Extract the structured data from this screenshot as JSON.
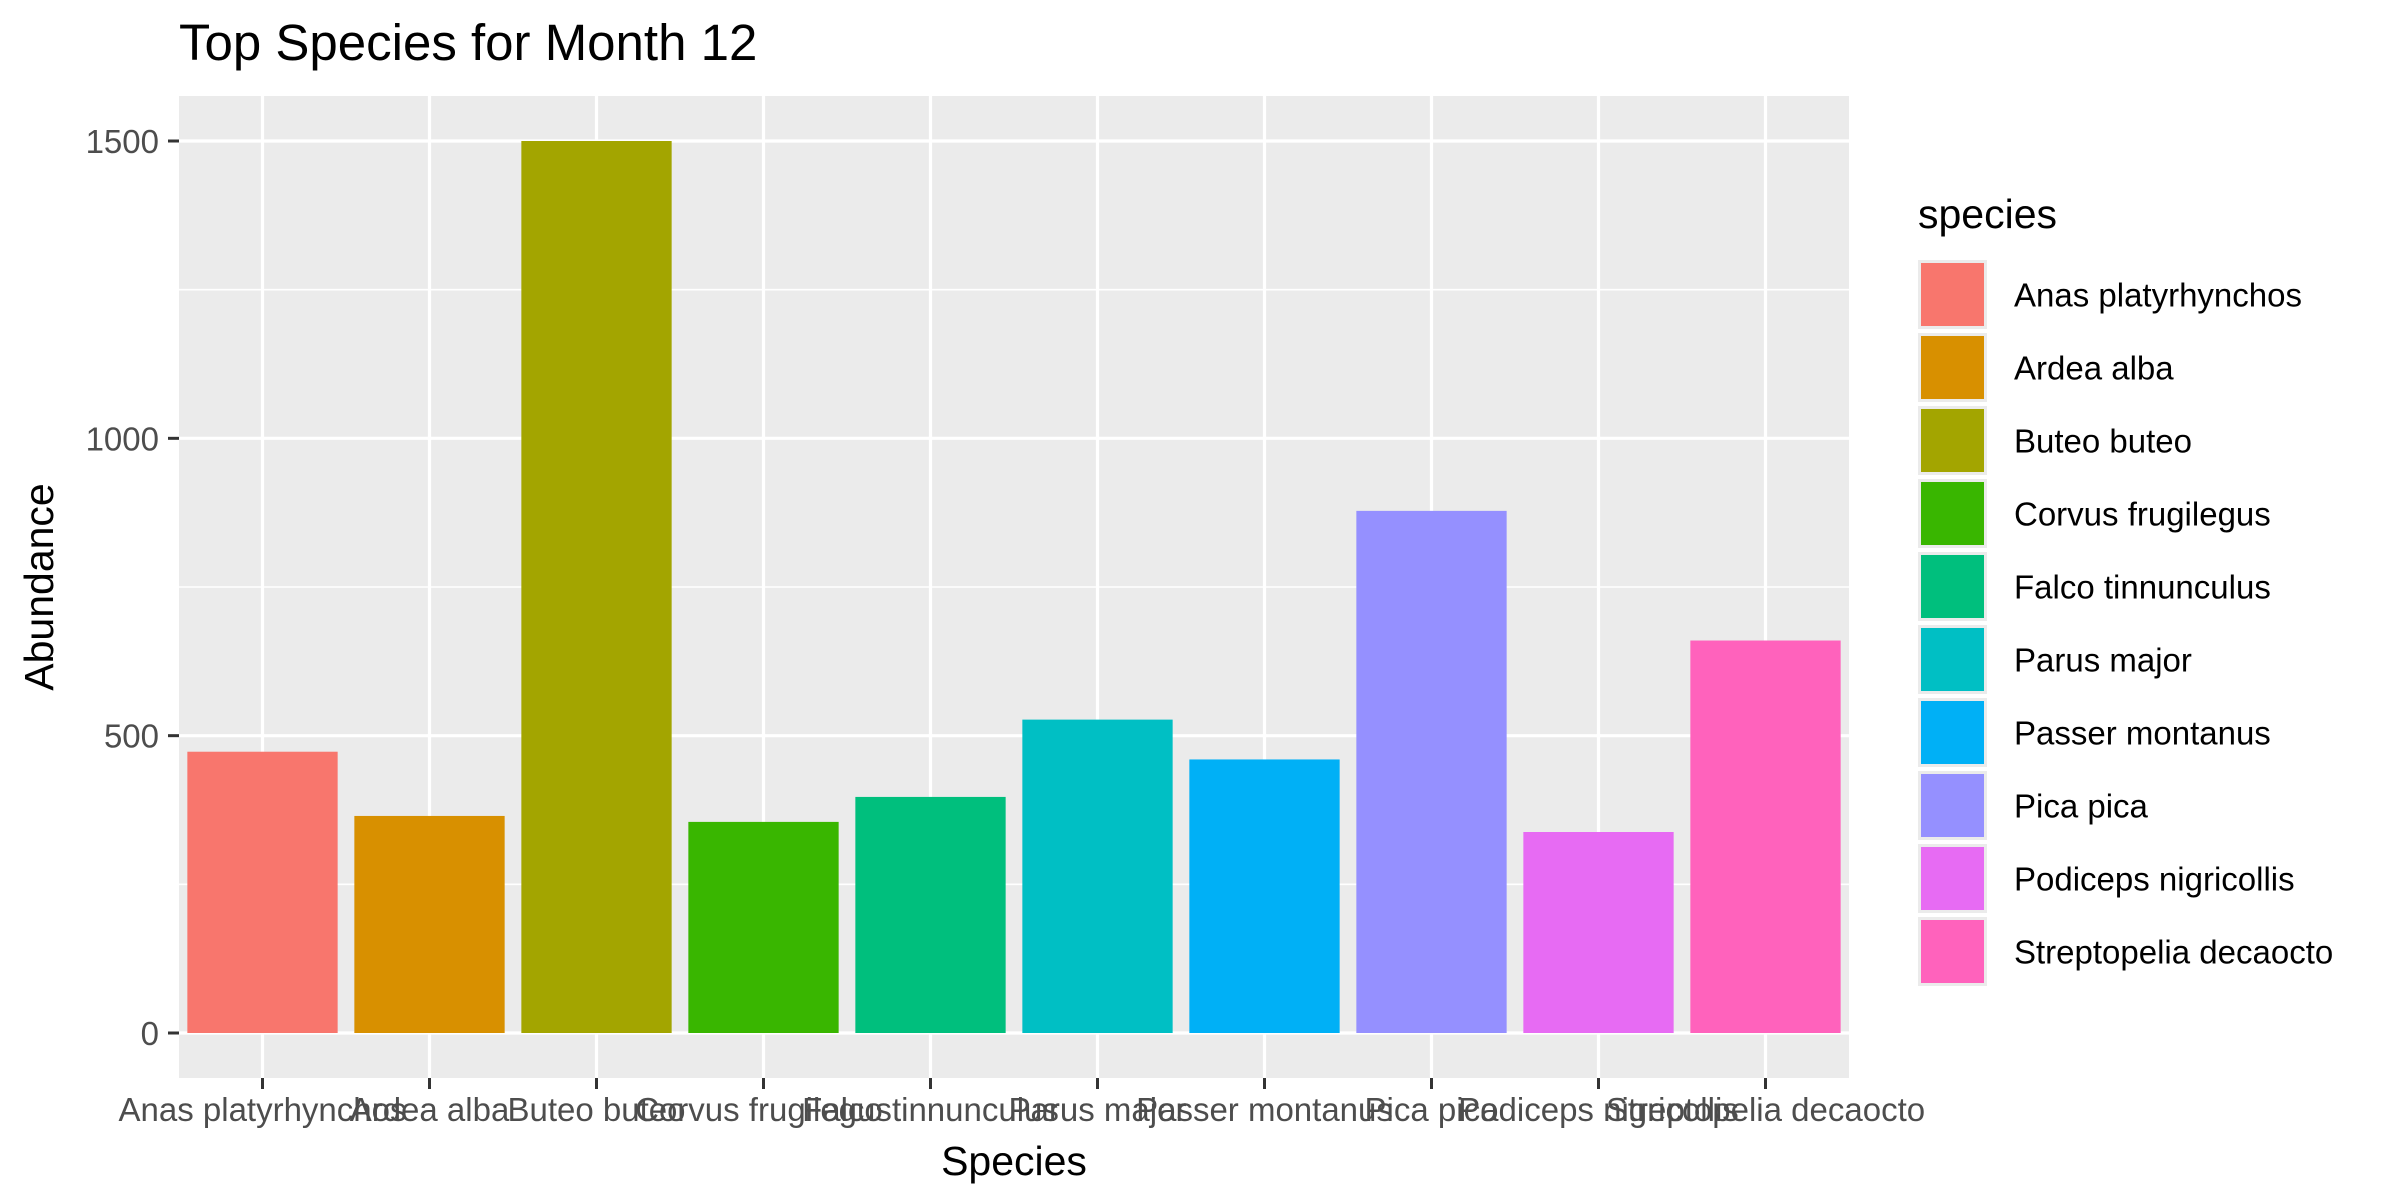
{
  "chart_data": {
    "type": "bar",
    "title": "Top Species for Month 12",
    "xlabel": "Species",
    "ylabel": "Abundance",
    "categories": [
      "Anas platyrhynchos",
      "Ardea alba",
      "Buteo buteo",
      "Corvus frugilegus",
      "Falco tinnunculus",
      "Parus major",
      "Passer montanus",
      "Pica pica",
      "Podiceps nigricollis",
      "Streptopelia decaocto"
    ],
    "values": [
      473,
      365,
      1500,
      355,
      397,
      527,
      460,
      878,
      338,
      660
    ],
    "colors": [
      "#F8766D",
      "#D89000",
      "#A3A500",
      "#39B600",
      "#00BF7D",
      "#00BFC4",
      "#00B0F6",
      "#9590FF",
      "#E76BF3",
      "#FF62BC"
    ],
    "ylim": [
      0,
      1500
    ],
    "yticks": [
      0,
      500,
      1000,
      1500
    ],
    "grid": true,
    "legend": {
      "title": "species",
      "position": "right",
      "entries": [
        "Anas platyrhynchos",
        "Ardea alba",
        "Buteo buteo",
        "Corvus frugilegus",
        "Falco tinnunculus",
        "Parus major",
        "Passer montanus",
        "Pica pica",
        "Podiceps nigricollis",
        "Streptopelia decaocto"
      ]
    },
    "panel_background": "#EBEBEB",
    "grid_color": "#FFFFFF"
  }
}
